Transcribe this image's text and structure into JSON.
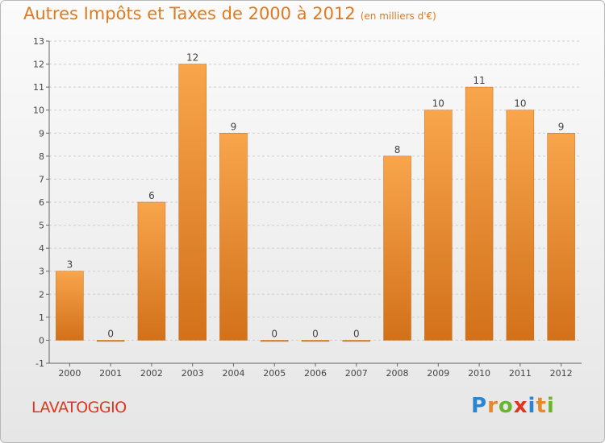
{
  "header": {
    "title": "Autres Impôts et Taxes de 2000 à 2012",
    "subtitle": "(en milliers d'€)"
  },
  "footer": {
    "city": "LAVATOGGIO",
    "logo_letters": [
      "P",
      "r",
      "o",
      "x",
      "i",
      "t",
      "i"
    ],
    "logo_colors": [
      "#2a86d1",
      "#e8882a",
      "#6ab42e",
      "#e0361e",
      "#2a86d1",
      "#e8882a",
      "#6ab42e"
    ]
  },
  "chart_data": {
    "type": "bar",
    "categories": [
      "2000",
      "2001",
      "2002",
      "2003",
      "2004",
      "2005",
      "2006",
      "2007",
      "2008",
      "2009",
      "2010",
      "2011",
      "2012"
    ],
    "values": [
      3,
      0,
      6,
      12,
      9,
      0,
      0,
      0,
      8,
      10,
      11,
      10,
      9
    ],
    "ylim": [
      -1,
      13
    ],
    "yticks": [
      -1,
      0,
      1,
      2,
      3,
      4,
      5,
      6,
      7,
      8,
      9,
      10,
      11,
      12,
      13
    ],
    "grid": true,
    "bar_color": "#f08c2a"
  }
}
